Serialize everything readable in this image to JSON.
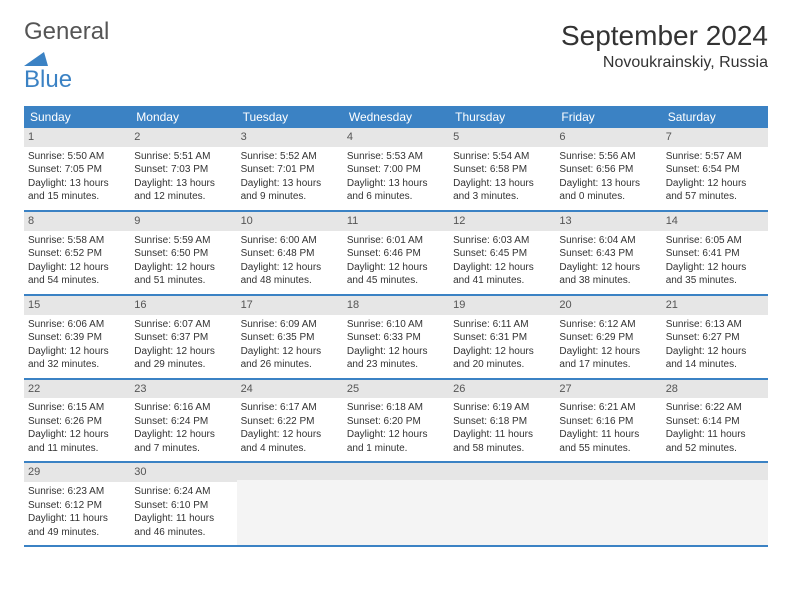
{
  "logo": {
    "text_gray": "General",
    "text_blue": "Blue",
    "icon_color": "#3b82c4"
  },
  "title": "September 2024",
  "location": "Novoukrainskiy, Russia",
  "colors": {
    "header_bg": "#3b82c4",
    "header_text": "#ffffff",
    "daynum_bg": "#e6e6e6",
    "border": "#3b82c4",
    "text": "#333333",
    "empty_bg": "#f4f4f4"
  },
  "day_headers": [
    "Sunday",
    "Monday",
    "Tuesday",
    "Wednesday",
    "Thursday",
    "Friday",
    "Saturday"
  ],
  "weeks": [
    [
      {
        "n": "1",
        "sr": "5:50 AM",
        "ss": "7:05 PM",
        "dl": "13 hours and 15 minutes."
      },
      {
        "n": "2",
        "sr": "5:51 AM",
        "ss": "7:03 PM",
        "dl": "13 hours and 12 minutes."
      },
      {
        "n": "3",
        "sr": "5:52 AM",
        "ss": "7:01 PM",
        "dl": "13 hours and 9 minutes."
      },
      {
        "n": "4",
        "sr": "5:53 AM",
        "ss": "7:00 PM",
        "dl": "13 hours and 6 minutes."
      },
      {
        "n": "5",
        "sr": "5:54 AM",
        "ss": "6:58 PM",
        "dl": "13 hours and 3 minutes."
      },
      {
        "n": "6",
        "sr": "5:56 AM",
        "ss": "6:56 PM",
        "dl": "13 hours and 0 minutes."
      },
      {
        "n": "7",
        "sr": "5:57 AM",
        "ss": "6:54 PM",
        "dl": "12 hours and 57 minutes."
      }
    ],
    [
      {
        "n": "8",
        "sr": "5:58 AM",
        "ss": "6:52 PM",
        "dl": "12 hours and 54 minutes."
      },
      {
        "n": "9",
        "sr": "5:59 AM",
        "ss": "6:50 PM",
        "dl": "12 hours and 51 minutes."
      },
      {
        "n": "10",
        "sr": "6:00 AM",
        "ss": "6:48 PM",
        "dl": "12 hours and 48 minutes."
      },
      {
        "n": "11",
        "sr": "6:01 AM",
        "ss": "6:46 PM",
        "dl": "12 hours and 45 minutes."
      },
      {
        "n": "12",
        "sr": "6:03 AM",
        "ss": "6:45 PM",
        "dl": "12 hours and 41 minutes."
      },
      {
        "n": "13",
        "sr": "6:04 AM",
        "ss": "6:43 PM",
        "dl": "12 hours and 38 minutes."
      },
      {
        "n": "14",
        "sr": "6:05 AM",
        "ss": "6:41 PM",
        "dl": "12 hours and 35 minutes."
      }
    ],
    [
      {
        "n": "15",
        "sr": "6:06 AM",
        "ss": "6:39 PM",
        "dl": "12 hours and 32 minutes."
      },
      {
        "n": "16",
        "sr": "6:07 AM",
        "ss": "6:37 PM",
        "dl": "12 hours and 29 minutes."
      },
      {
        "n": "17",
        "sr": "6:09 AM",
        "ss": "6:35 PM",
        "dl": "12 hours and 26 minutes."
      },
      {
        "n": "18",
        "sr": "6:10 AM",
        "ss": "6:33 PM",
        "dl": "12 hours and 23 minutes."
      },
      {
        "n": "19",
        "sr": "6:11 AM",
        "ss": "6:31 PM",
        "dl": "12 hours and 20 minutes."
      },
      {
        "n": "20",
        "sr": "6:12 AM",
        "ss": "6:29 PM",
        "dl": "12 hours and 17 minutes."
      },
      {
        "n": "21",
        "sr": "6:13 AM",
        "ss": "6:27 PM",
        "dl": "12 hours and 14 minutes."
      }
    ],
    [
      {
        "n": "22",
        "sr": "6:15 AM",
        "ss": "6:26 PM",
        "dl": "12 hours and 11 minutes."
      },
      {
        "n": "23",
        "sr": "6:16 AM",
        "ss": "6:24 PM",
        "dl": "12 hours and 7 minutes."
      },
      {
        "n": "24",
        "sr": "6:17 AM",
        "ss": "6:22 PM",
        "dl": "12 hours and 4 minutes."
      },
      {
        "n": "25",
        "sr": "6:18 AM",
        "ss": "6:20 PM",
        "dl": "12 hours and 1 minute."
      },
      {
        "n": "26",
        "sr": "6:19 AM",
        "ss": "6:18 PM",
        "dl": "11 hours and 58 minutes."
      },
      {
        "n": "27",
        "sr": "6:21 AM",
        "ss": "6:16 PM",
        "dl": "11 hours and 55 minutes."
      },
      {
        "n": "28",
        "sr": "6:22 AM",
        "ss": "6:14 PM",
        "dl": "11 hours and 52 minutes."
      }
    ],
    [
      {
        "n": "29",
        "sr": "6:23 AM",
        "ss": "6:12 PM",
        "dl": "11 hours and 49 minutes."
      },
      {
        "n": "30",
        "sr": "6:24 AM",
        "ss": "6:10 PM",
        "dl": "11 hours and 46 minutes."
      },
      null,
      null,
      null,
      null,
      null
    ]
  ],
  "labels": {
    "sunrise": "Sunrise:",
    "sunset": "Sunset:",
    "daylight": "Daylight:"
  }
}
